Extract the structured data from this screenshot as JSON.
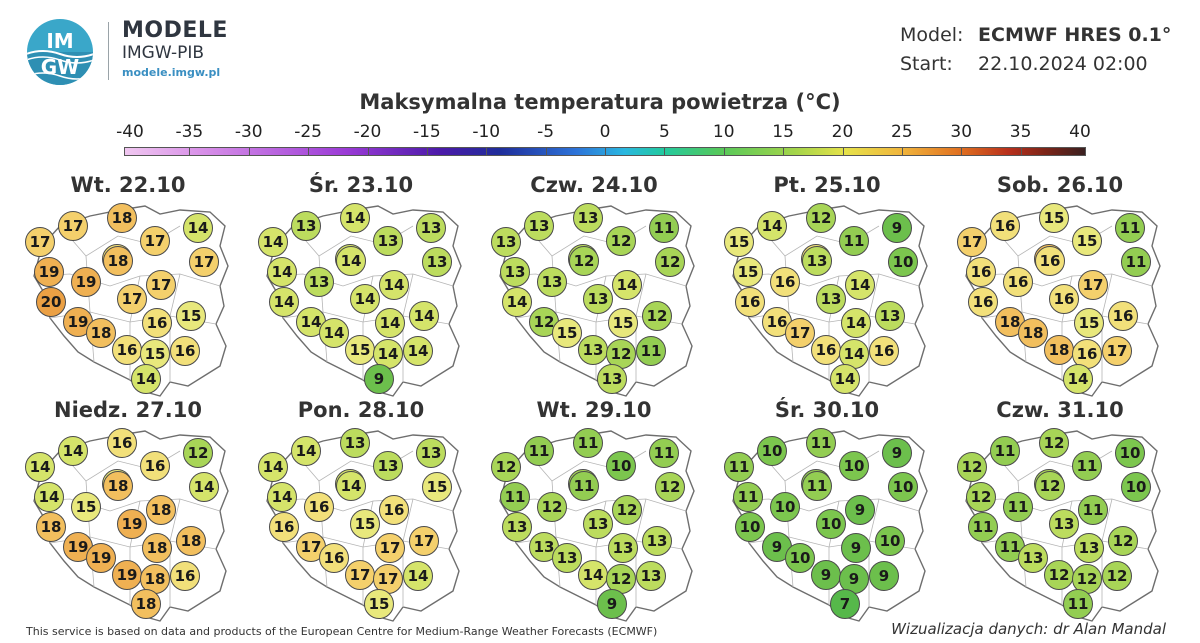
{
  "brand": {
    "logo_text_top": "IM",
    "logo_text_bottom": "GW",
    "title": "MODELE",
    "subtitle": "IMGW-PIB",
    "url": "modele.imgw.pl"
  },
  "meta": {
    "model_label": "Model:",
    "model_value": "ECMWF HRES 0.1°",
    "start_label": "Start:",
    "start_value": "22.10.2024 02:00"
  },
  "title": "Maksymalna temperatura powietrza (°C)",
  "scale": {
    "ticks": [
      "-40",
      "-35",
      "-30",
      "-25",
      "-20",
      "-15",
      "-10",
      "-5",
      "0",
      "5",
      "10",
      "15",
      "20",
      "25",
      "30",
      "35",
      "40"
    ],
    "min": -40,
    "max": 40
  },
  "colors": {
    "t7": "#56b84a",
    "t9": "#6cbf4c",
    "t10": "#7cc64e",
    "t11": "#93cd52",
    "t12": "#a8d557",
    "t13": "#bcdc5e",
    "t14": "#d5e46a",
    "t15": "#e8e87c",
    "t16": "#f2e07a",
    "t17": "#f4d06c",
    "t18": "#f2bf5e",
    "t19": "#efb052",
    "t20": "#eba044"
  },
  "panels": [
    {
      "title": "Wt. 22.10",
      "values": [
        17,
        18,
        14,
        17,
        17,
        17,
        16,
        18,
        19,
        19,
        17,
        20,
        17,
        19,
        15,
        16,
        18,
        16,
        15,
        16,
        14
      ]
    },
    {
      "title": "Śr. 23.10",
      "values": [
        13,
        14,
        13,
        14,
        13,
        13,
        14,
        14,
        14,
        13,
        14,
        14,
        14,
        14,
        14,
        14,
        14,
        15,
        14,
        14,
        9
      ]
    },
    {
      "title": "Czw. 24.10",
      "values": [
        13,
        13,
        11,
        13,
        12,
        12,
        13,
        12,
        13,
        13,
        13,
        14,
        14,
        12,
        12,
        15,
        15,
        13,
        12,
        11,
        13
      ]
    },
    {
      "title": "Pt. 25.10",
      "values": [
        14,
        12,
        9,
        15,
        11,
        10,
        16,
        13,
        15,
        16,
        13,
        16,
        14,
        16,
        13,
        14,
        17,
        16,
        14,
        16,
        14
      ]
    },
    {
      "title": "Sob. 26.10",
      "values": [
        16,
        15,
        11,
        17,
        15,
        11,
        18,
        16,
        16,
        16,
        16,
        16,
        17,
        18,
        16,
        15,
        18,
        18,
        16,
        17,
        14
      ]
    },
    {
      "title": "Niedz. 27.10",
      "values": [
        14,
        16,
        12,
        14,
        16,
        14,
        15,
        18,
        14,
        15,
        19,
        18,
        18,
        19,
        18,
        18,
        19,
        19,
        18,
        16,
        18
      ]
    },
    {
      "title": "Pon. 28.10",
      "values": [
        14,
        13,
        13,
        14,
        13,
        15,
        14,
        14,
        14,
        16,
        15,
        16,
        16,
        17,
        17,
        17,
        16,
        17,
        17,
        14,
        15
      ]
    },
    {
      "title": "Wt. 29.10",
      "values": [
        11,
        11,
        11,
        12,
        10,
        12,
        12,
        11,
        11,
        12,
        13,
        13,
        12,
        13,
        13,
        13,
        13,
        14,
        12,
        13,
        9
      ]
    },
    {
      "title": "Śr. 30.10",
      "values": [
        10,
        11,
        9,
        11,
        10,
        10,
        11,
        11,
        11,
        10,
        10,
        10,
        9,
        9,
        10,
        9,
        10,
        9,
        9,
        9,
        7
      ]
    },
    {
      "title": "Czw. 31.10",
      "values": [
        11,
        12,
        10,
        12,
        11,
        10,
        12,
        12,
        12,
        11,
        13,
        11,
        11,
        11,
        12,
        13,
        13,
        12,
        12,
        12,
        11
      ]
    }
  ],
  "footer": {
    "left": "This service is based on data and products of the European Centre for Medium-Range Weather Forecasts (ECMWF)",
    "right": "Wizualizacja danych: dr Alan Mandal"
  }
}
